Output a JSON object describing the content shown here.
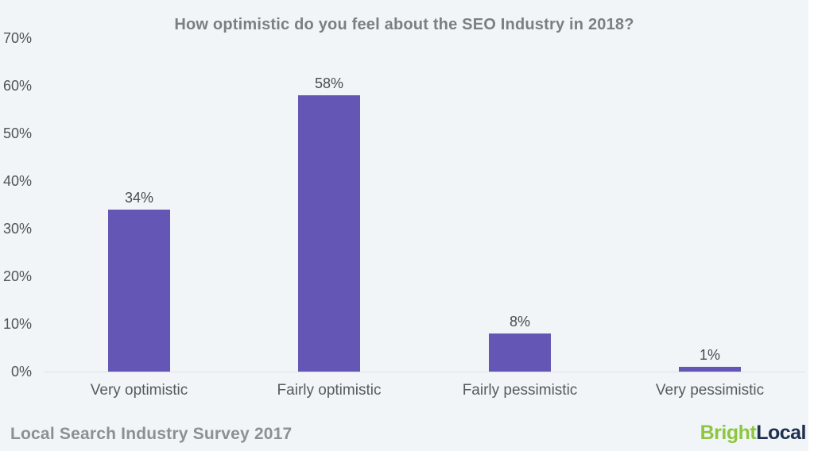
{
  "chart_data": {
    "type": "bar",
    "title": "How optimistic do you feel about the SEO Industry in 2018?",
    "categories": [
      "Very optimistic",
      "Fairly optimistic",
      "Fairly pessimistic",
      "Very pessimistic"
    ],
    "values": [
      34,
      58,
      8,
      1
    ],
    "value_labels": [
      "34%",
      "58%",
      "8%",
      "1%"
    ],
    "xlabel": "",
    "ylabel": "",
    "ylim": [
      0,
      70
    ],
    "y_ticks": [
      "70%",
      "60%",
      "50%",
      "40%",
      "30%",
      "20%",
      "10%",
      "0%"
    ],
    "y_tick_values": [
      70,
      60,
      50,
      40,
      30,
      20,
      10,
      0
    ],
    "grid": "baseline-only",
    "legend": "none",
    "bar_color": "#6456b4"
  },
  "footer": {
    "source_label": "Local Search Industry Survey 2017",
    "brand": {
      "part1": "Bright",
      "part2": "Local"
    }
  },
  "colors": {
    "background": "#f1f5f8",
    "bar": "#6456b4",
    "title_text": "#7b7f84",
    "axis_text": "#4f545a",
    "baseline": "#dde2e7",
    "brand_green": "#8dc63f",
    "brand_navy": "#20304f"
  }
}
